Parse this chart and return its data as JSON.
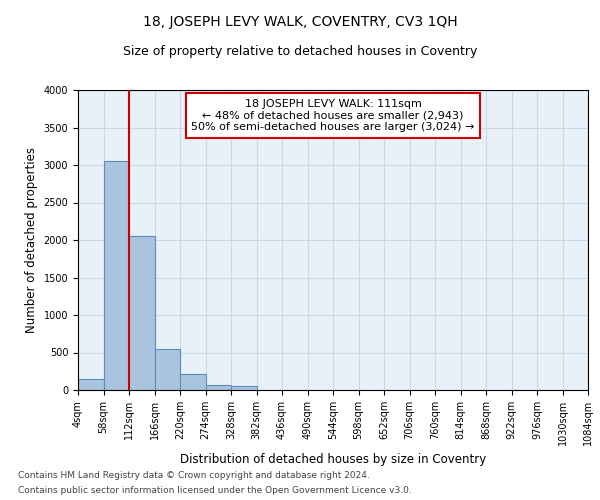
{
  "title": "18, JOSEPH LEVY WALK, COVENTRY, CV3 1QH",
  "subtitle": "Size of property relative to detached houses in Coventry",
  "xlabel": "Distribution of detached houses by size in Coventry",
  "ylabel": "Number of detached properties",
  "footnote1": "Contains HM Land Registry data © Crown copyright and database right 2024.",
  "footnote2": "Contains public sector information licensed under the Open Government Licence v3.0.",
  "bin_edges": [
    4,
    58,
    112,
    166,
    220,
    274,
    328,
    382,
    436,
    490,
    544,
    598,
    652,
    706,
    760,
    814,
    868,
    922,
    976,
    1030,
    1084
  ],
  "bar_heights": [
    150,
    3050,
    2060,
    550,
    210,
    70,
    50,
    0,
    0,
    0,
    0,
    0,
    0,
    0,
    0,
    0,
    0,
    0,
    0,
    0
  ],
  "bar_color": "#aac4e0",
  "bar_edge_color": "#5b8db8",
  "red_line_x": 112,
  "annotation_text": "18 JOSEPH LEVY WALK: 111sqm\n← 48% of detached houses are smaller (2,943)\n50% of semi-detached houses are larger (3,024) →",
  "annotation_box_color": "#ffffff",
  "annotation_box_edge_color": "#cc0000",
  "annotation_text_color": "#000000",
  "red_line_color": "#cc0000",
  "ylim": [
    0,
    4000
  ],
  "grid_color": "#c8d8e8",
  "background_color": "#e8f0f8",
  "tick_labels": [
    "4sqm",
    "58sqm",
    "112sqm",
    "166sqm",
    "220sqm",
    "274sqm",
    "328sqm",
    "382sqm",
    "436sqm",
    "490sqm",
    "544sqm",
    "598sqm",
    "652sqm",
    "706sqm",
    "760sqm",
    "814sqm",
    "868sqm",
    "922sqm",
    "976sqm",
    "1030sqm",
    "1084sqm"
  ],
  "title_fontsize": 10,
  "subtitle_fontsize": 9,
  "axis_label_fontsize": 8.5,
  "tick_fontsize": 7,
  "annotation_fontsize": 8,
  "footnote_fontsize": 6.5
}
